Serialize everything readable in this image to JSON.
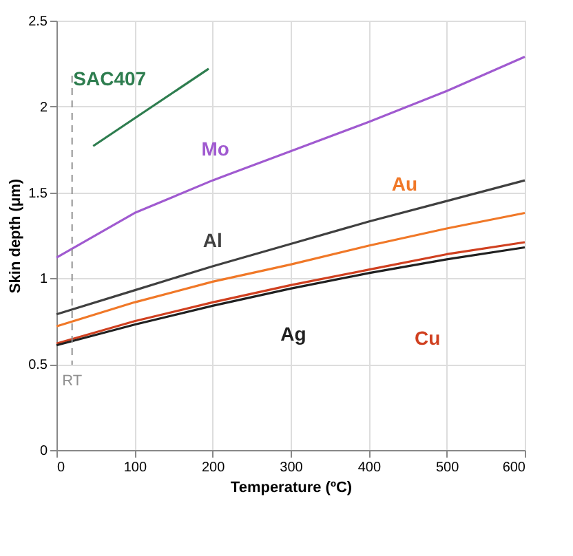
{
  "chart_data": {
    "type": "line",
    "xlabel": "Temperature   (ºC)",
    "ylabel": "Skin depth   (μm)",
    "xlim": [
      0,
      600
    ],
    "xticks": [
      0,
      100,
      200,
      300,
      400,
      500,
      600
    ],
    "ylim": [
      0,
      2.5
    ],
    "yticks": [
      0,
      0.5,
      1,
      1.5,
      2,
      2.5
    ],
    "grid": true,
    "line_style": "solid",
    "series": [
      {
        "name": "SAC407",
        "color": "#2e7d4f",
        "x": [
          47,
          195
        ],
        "values": [
          1.77,
          2.22
        ]
      },
      {
        "name": "Mo",
        "color": "#a05ad0",
        "x": [
          0,
          100,
          200,
          300,
          400,
          500,
          600
        ],
        "values": [
          1.12,
          1.38,
          1.57,
          1.74,
          1.91,
          2.09,
          2.29
        ]
      },
      {
        "name": "Al",
        "color": "#404040",
        "x": [
          0,
          100,
          200,
          300,
          400,
          500,
          600
        ],
        "values": [
          0.79,
          0.93,
          1.07,
          1.2,
          1.33,
          1.45,
          1.57
        ]
      },
      {
        "name": "Au",
        "color": "#f07828",
        "x": [
          0,
          100,
          200,
          300,
          400,
          500,
          600
        ],
        "values": [
          0.72,
          0.86,
          0.98,
          1.08,
          1.19,
          1.29,
          1.38
        ]
      },
      {
        "name": "Cu",
        "color": "#d04020",
        "x": [
          0,
          100,
          200,
          300,
          400,
          500,
          600
        ],
        "values": [
          0.62,
          0.75,
          0.86,
          0.96,
          1.05,
          1.14,
          1.21
        ]
      },
      {
        "name": "Ag",
        "color": "#202020",
        "x": [
          0,
          100,
          200,
          300,
          400,
          500,
          600
        ],
        "values": [
          0.61,
          0.73,
          0.84,
          0.94,
          1.03,
          1.11,
          1.18
        ]
      }
    ],
    "ref_lines": [
      {
        "axis": "x",
        "value": 20,
        "label": "RT",
        "color": "#909090",
        "line_style": "dashed"
      }
    ]
  }
}
